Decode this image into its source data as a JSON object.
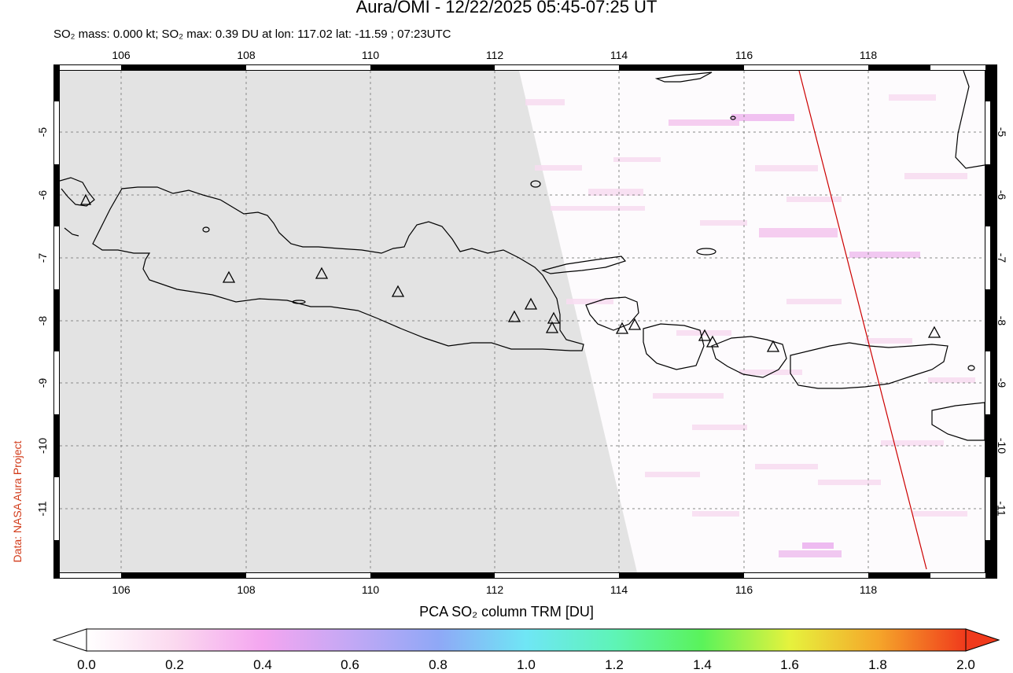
{
  "header": {
    "title": "Aura/OMI - 12/22/2025 05:45-07:25 UT",
    "subtitle": "SO₂ mass: 0.000 kt; SO₂ max: 0.39 DU at lon: 117.02 lat: -11.59 ; 07:23UTC"
  },
  "map": {
    "lon_ticks": [
      "106",
      "108",
      "110",
      "112",
      "114",
      "116",
      "118"
    ],
    "lat_ticks": [
      "-5",
      "-6",
      "-7",
      "-8",
      "-9",
      "-10",
      "-11"
    ],
    "lon_range": [
      105,
      120
    ],
    "lat_range": [
      -12,
      -4
    ],
    "no_data_color": "#e3e3e3",
    "coastline_color": "#000000",
    "orbit_track_color": "#cc0000",
    "volcano_marker": "triangle-icon"
  },
  "credit": "Data: NASA Aura Project",
  "colorbar": {
    "title": "PCA SO₂ column TRM [DU]",
    "ticks": [
      "0.0",
      "0.2",
      "0.4",
      "0.6",
      "0.8",
      "1.0",
      "1.2",
      "1.4",
      "1.6",
      "1.8",
      "2.0"
    ],
    "range": [
      0.0,
      2.0
    ],
    "colors": [
      "#ffffff",
      "#fbd9ef",
      "#f4a6f0",
      "#c3a8f5",
      "#8fa8f6",
      "#6fe6f5",
      "#5ef4b7",
      "#5af35a",
      "#e6f23d",
      "#f5a62a",
      "#f03a1c"
    ]
  }
}
